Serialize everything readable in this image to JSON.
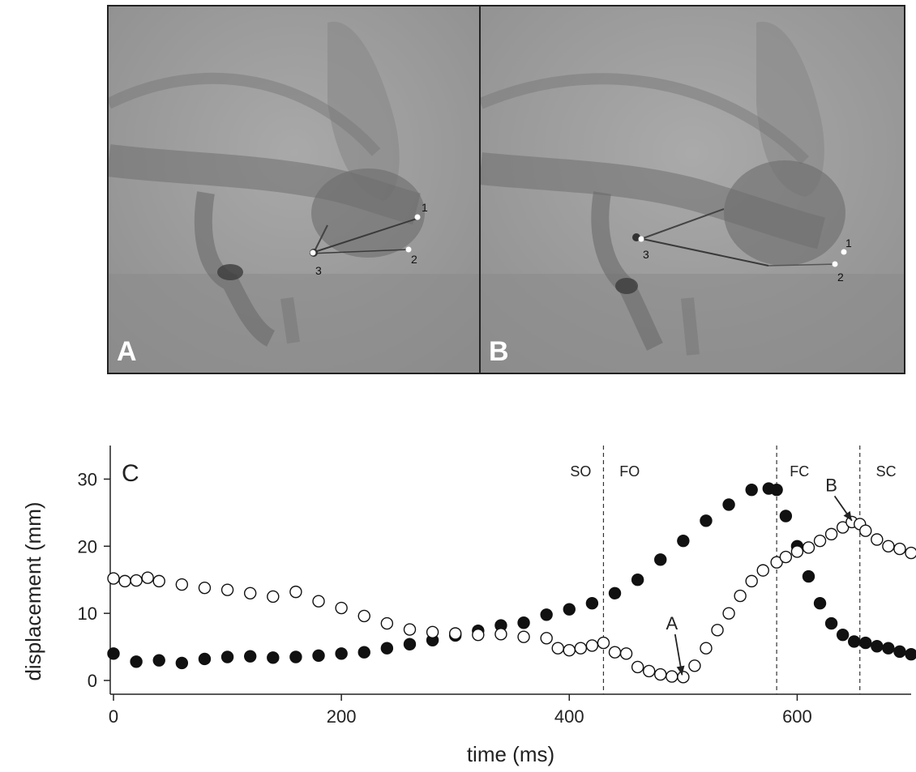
{
  "panels": {
    "a": {
      "letter": "A",
      "markers": [
        "1",
        "2",
        "3"
      ]
    },
    "b": {
      "letter": "B",
      "markers": [
        "1",
        "2",
        "3"
      ]
    }
  },
  "chart_data": {
    "type": "scatter",
    "panel_label": "C",
    "xlabel": "time (ms)",
    "ylabel": "displacement (mm)",
    "xlim": [
      0,
      700
    ],
    "ylim": [
      0,
      35
    ],
    "xticks": [
      0,
      200,
      400,
      600
    ],
    "yticks": [
      0,
      10,
      20,
      30
    ],
    "phase_lines": [
      430,
      582,
      655
    ],
    "phase_labels": [
      {
        "text": "SO",
        "x": 410
      },
      {
        "text": "FO",
        "x": 453
      },
      {
        "text": "FC",
        "x": 602
      },
      {
        "text": "SC",
        "x": 678
      }
    ],
    "annotations": [
      {
        "text": "A",
        "x": 490,
        "y": 7.6,
        "arrow_to": [
          499,
          0.8
        ]
      },
      {
        "text": "B",
        "x": 630,
        "y": 28.2,
        "arrow_to": [
          648,
          23.8
        ]
      }
    ],
    "series": [
      {
        "marker": "filled-circle",
        "color": "#111111",
        "x": [
          0,
          20,
          40,
          60,
          80,
          100,
          120,
          140,
          160,
          180,
          200,
          220,
          240,
          260,
          280,
          300,
          320,
          340,
          360,
          380,
          400,
          420,
          440,
          460,
          480,
          500,
          520,
          540,
          560,
          575,
          582,
          590,
          600,
          610,
          620,
          630,
          640,
          650,
          660,
          670,
          680,
          690,
          700
        ],
        "y": [
          4,
          2.8,
          3,
          2.6,
          3.2,
          3.5,
          3.6,
          3.4,
          3.5,
          3.7,
          4,
          4.2,
          4.8,
          5.4,
          6,
          6.7,
          7.4,
          8.2,
          8.6,
          9.8,
          10.6,
          11.5,
          13,
          15,
          18,
          20.8,
          23.8,
          26.2,
          28.4,
          28.6,
          28.4,
          24.5,
          20,
          15.5,
          11.5,
          8.5,
          6.8,
          5.8,
          5.6,
          5.1,
          4.8,
          4.3,
          3.9
        ]
      },
      {
        "marker": "open-circle",
        "color": "#111111",
        "x": [
          0,
          10,
          20,
          30,
          40,
          60,
          80,
          100,
          120,
          140,
          160,
          180,
          200,
          220,
          240,
          260,
          280,
          300,
          320,
          340,
          360,
          380,
          390,
          400,
          410,
          420,
          430,
          440,
          450,
          460,
          470,
          480,
          490,
          500,
          510,
          520,
          530,
          540,
          550,
          560,
          570,
          582,
          590,
          600,
          610,
          620,
          630,
          640,
          648,
          655,
          660,
          670,
          680,
          690,
          700
        ],
        "y": [
          15.2,
          14.8,
          14.9,
          15.3,
          14.8,
          14.3,
          13.8,
          13.5,
          13,
          12.5,
          13.2,
          11.8,
          10.8,
          9.6,
          8.5,
          7.6,
          7.2,
          7,
          6.8,
          6.9,
          6.5,
          6.3,
          4.8,
          4.5,
          4.8,
          5.2,
          5.6,
          4.2,
          4,
          2,
          1.4,
          0.9,
          0.6,
          0.5,
          2.2,
          4.8,
          7.5,
          10,
          12.6,
          14.8,
          16.4,
          17.6,
          18.4,
          19.2,
          19.8,
          20.8,
          21.8,
          22.8,
          23.6,
          23.3,
          22.3,
          21,
          20,
          19.6,
          19
        ]
      }
    ]
  }
}
